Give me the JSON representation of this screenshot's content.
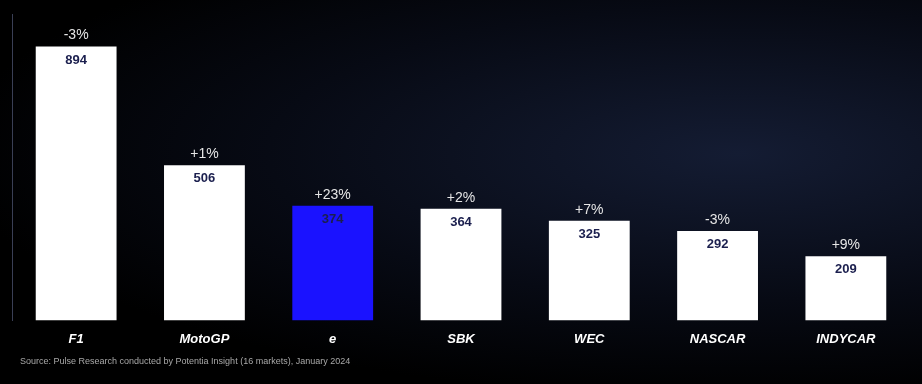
{
  "chart_data": {
    "type": "bar",
    "categories": [
      "F1",
      "MotoGP",
      "e",
      "SBK",
      "WEC",
      "NASCAR",
      "INDYCAR"
    ],
    "values": [
      894,
      506,
      374,
      364,
      325,
      292,
      209
    ],
    "colors": [
      "#ffffff",
      "#ffffff",
      "#1a12ff",
      "#ffffff",
      "#ffffff",
      "#ffffff",
      "#ffffff"
    ],
    "annotations": [
      "-3%",
      "+1%",
      "+23%",
      "+2%",
      "+7%",
      "-3%",
      "+9%"
    ],
    "source": "Source: Pulse Research conducted by Potentia Insight (16 markets), January 2024",
    "ylim": [
      0,
      1000
    ],
    "grid": false,
    "data_labels": true,
    "tick_labels": "x"
  }
}
